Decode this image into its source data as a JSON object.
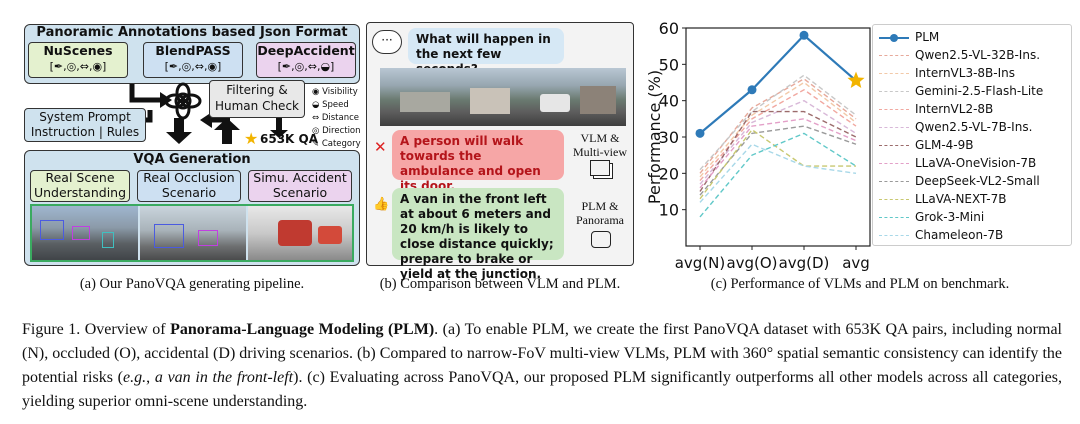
{
  "panel_a": {
    "header": "Panoramic Annotations based Json Format",
    "sources": [
      {
        "name": "NuScenes",
        "symbols": "[✒,◎,⇔,◉]"
      },
      {
        "name": "BlendPASS",
        "symbols": "[✒,◎,⇔,◉]"
      },
      {
        "name": "DeepAccident",
        "symbols": "[✒,◎,⇔,◒]"
      }
    ],
    "system_prompt": "System Prompt Instruction | Rules",
    "filtering": "Filtering & Human Check",
    "qa_count": "653K QA",
    "legend": [
      {
        "icon": "eye-icon",
        "label": "Visibility"
      },
      {
        "icon": "speedometer-icon",
        "label": "Speed"
      },
      {
        "icon": "arrows-icon",
        "label": "Distance"
      },
      {
        "icon": "target-icon",
        "label": "Direction"
      },
      {
        "icon": "tag-icon",
        "label": "Category"
      }
    ],
    "vqa_title": "VQA Generation",
    "vqa_types": [
      "Real Scene Understanding",
      "Real Occlusion Scenario",
      "Simu. Accident Scenario"
    ],
    "caption": "(a) Our PanoVQA generating pipeline."
  },
  "panel_b": {
    "question": "What will happen in the next few seconds?",
    "vlm_answer": "A person will walk towards the ambulance and open its door.",
    "vlm_label": "VLM & Multi-view",
    "plm_answer": "A van in the front left at about 6 meters and 20 km/h is likely to close distance quickly; prepare to brake or yield at the junction.",
    "plm_label": "PLM & Panorama",
    "caption": "(b) Comparison between VLM and PLM."
  },
  "chart_data": {
    "type": "line",
    "categories": [
      "avg(N)",
      "avg(O)",
      "avg(D)",
      "avg"
    ],
    "ylabel": "Performance (%)",
    "ylim": [
      0,
      60
    ],
    "yticks": [
      10,
      20,
      30,
      40,
      50,
      60
    ],
    "grid": false,
    "legend_position": "right",
    "series": [
      {
        "name": "PLM",
        "values": [
          31,
          43,
          58,
          45.5
        ],
        "color": "#2e7ab8",
        "style": "solid"
      },
      {
        "name": "Qwen2.5-VL-32B-Ins.",
        "values": [
          20,
          38,
          46,
          35
        ],
        "color": "#e7a99b",
        "style": "dashed"
      },
      {
        "name": "InternVL3-8B-Ins",
        "values": [
          19,
          36,
          45,
          34
        ],
        "color": "#f2c9a8",
        "style": "dashed"
      },
      {
        "name": "Gemini-2.5-Flash-Lite",
        "values": [
          21,
          37,
          47,
          36
        ],
        "color": "#c8c8c8",
        "style": "dashed"
      },
      {
        "name": "InternVL2-8B",
        "values": [
          18,
          35,
          43,
          33
        ],
        "color": "#f1a8a0",
        "style": "dashed"
      },
      {
        "name": "Qwen2.5-VL-7B-Ins.",
        "values": [
          17,
          34,
          40,
          31
        ],
        "color": "#d8b8d8",
        "style": "dashed"
      },
      {
        "name": "GLM-4-9B",
        "values": [
          15,
          37,
          37,
          30
        ],
        "color": "#9b6b6b",
        "style": "dashed"
      },
      {
        "name": "LLaVA-OneVision-7B",
        "values": [
          16,
          33,
          35,
          29
        ],
        "color": "#e3a0c8",
        "style": "dashed"
      },
      {
        "name": "DeepSeek-VL2-Small",
        "values": [
          14,
          31,
          33,
          28
        ],
        "color": "#9a9a9a",
        "style": "dashed"
      },
      {
        "name": "LLaVA-NEXT-7B",
        "values": [
          13,
          32,
          22,
          22
        ],
        "color": "#c8c870",
        "style": "dashed"
      },
      {
        "name": "Grok-3-Mini",
        "values": [
          8,
          25,
          31,
          22
        ],
        "color": "#60c8c8",
        "style": "dashed"
      },
      {
        "name": "Chameleon-7B",
        "values": [
          12,
          28,
          22,
          20
        ],
        "color": "#a8d8e8",
        "style": "dashed"
      }
    ],
    "highlight": {
      "series": "PLM",
      "category": "avg",
      "marker": "star",
      "color": "#f2b400"
    }
  },
  "panel_c": {
    "caption": "(c) Performance of VLMs and PLM on benchmark."
  },
  "figure_caption": {
    "label": "Figure 1.",
    "intro": "Overview of",
    "bold": "Panorama-Language Modeling (PLM)",
    "p1": ". (a) To enable PLM, we create the first PanoVQA dataset with 653K QA pairs, including normal (N), occluded (O), accidental (D) driving scenarios. (b) Compared to narrow-FoV multi-view VLMs, PLM with 360° spatial semantic consistency can identify the potential risks (",
    "eg": "e.g.",
    "comma": ", ",
    "ital": "a van in the front-left",
    "p2": "). (c) Evaluating across PanoVQA, our proposed PLM significantly outperforms all other models across all categories, yielding superior omni-scene understanding."
  }
}
